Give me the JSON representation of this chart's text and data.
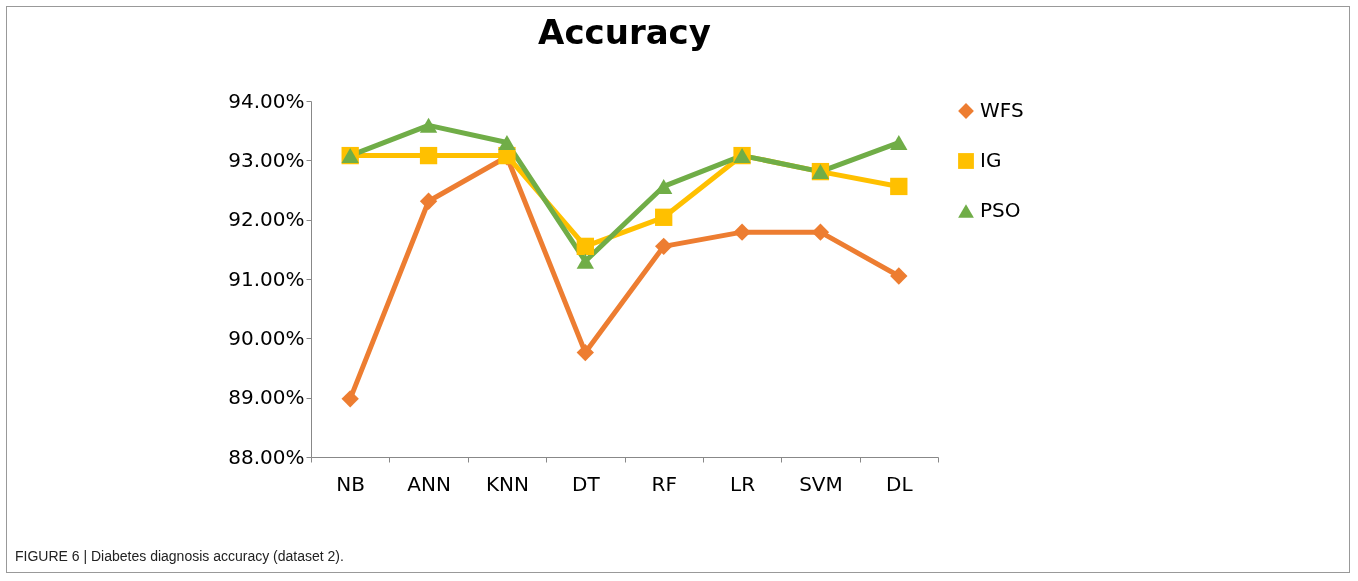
{
  "chart_data": {
    "type": "line",
    "title": "Accuracy",
    "categories": [
      "NB",
      "ANN",
      "KNN",
      "DT",
      "RF",
      "LR",
      "SVM",
      "DL"
    ],
    "series": [
      {
        "name": "WFS",
        "color": "#ed7d31",
        "marker": "diamond",
        "values": [
          88.98,
          92.31,
          93.06,
          89.76,
          91.55,
          91.79,
          91.79,
          91.05
        ]
      },
      {
        "name": "IG",
        "color": "#ffc000",
        "marker": "square",
        "values": [
          93.08,
          93.08,
          93.08,
          91.55,
          92.04,
          93.08,
          92.81,
          92.56
        ]
      },
      {
        "name": "PSO",
        "color": "#70ad47",
        "marker": "triangle",
        "values": [
          93.08,
          93.59,
          93.3,
          91.3,
          92.56,
          93.08,
          92.81,
          93.3
        ]
      }
    ],
    "ylim": [
      88,
      94
    ],
    "yticks": [
      {
        "value": 88,
        "label": "88.00%"
      },
      {
        "value": 89,
        "label": "89.00%"
      },
      {
        "value": 90,
        "label": "90.00%"
      },
      {
        "value": 91,
        "label": "91.00%"
      },
      {
        "value": 92,
        "label": "92.00%"
      },
      {
        "value": 93,
        "label": "93.00%"
      },
      {
        "value": 94,
        "label": "94.00%"
      }
    ],
    "grid": false,
    "legend": "right",
    "annotations": [
      "FIGURE 6 | Diabetes diagnosis accuracy (dataset 2)."
    ]
  }
}
